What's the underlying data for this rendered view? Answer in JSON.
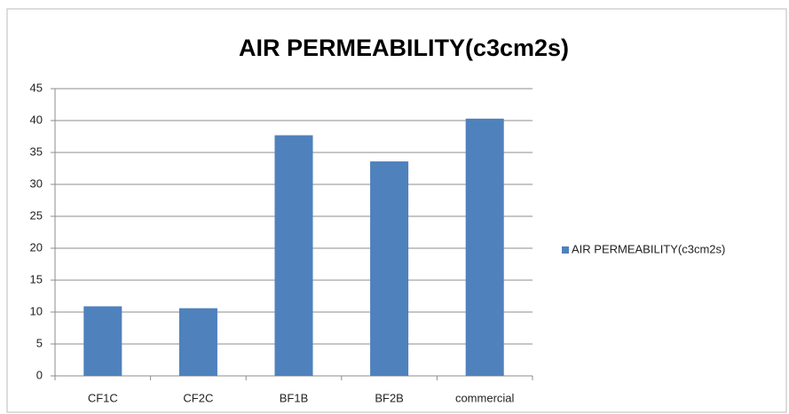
{
  "chart_data": {
    "type": "bar",
    "title": "AIR PERMEABILITY(c3cm2s)",
    "categories": [
      "CF1C",
      "CF2C",
      "BF1B",
      "BF2B",
      "commercial"
    ],
    "series": [
      {
        "name": "AIR PERMEABILITY(c3cm2s)",
        "color": "#4f81bd",
        "values": [
          10.9,
          10.6,
          37.7,
          33.6,
          40.3
        ]
      }
    ],
    "ylim": [
      0,
      45
    ],
    "yticks": [
      0,
      5,
      10,
      15,
      20,
      25,
      30,
      35,
      40,
      45
    ],
    "grid": true,
    "legend": "right"
  }
}
